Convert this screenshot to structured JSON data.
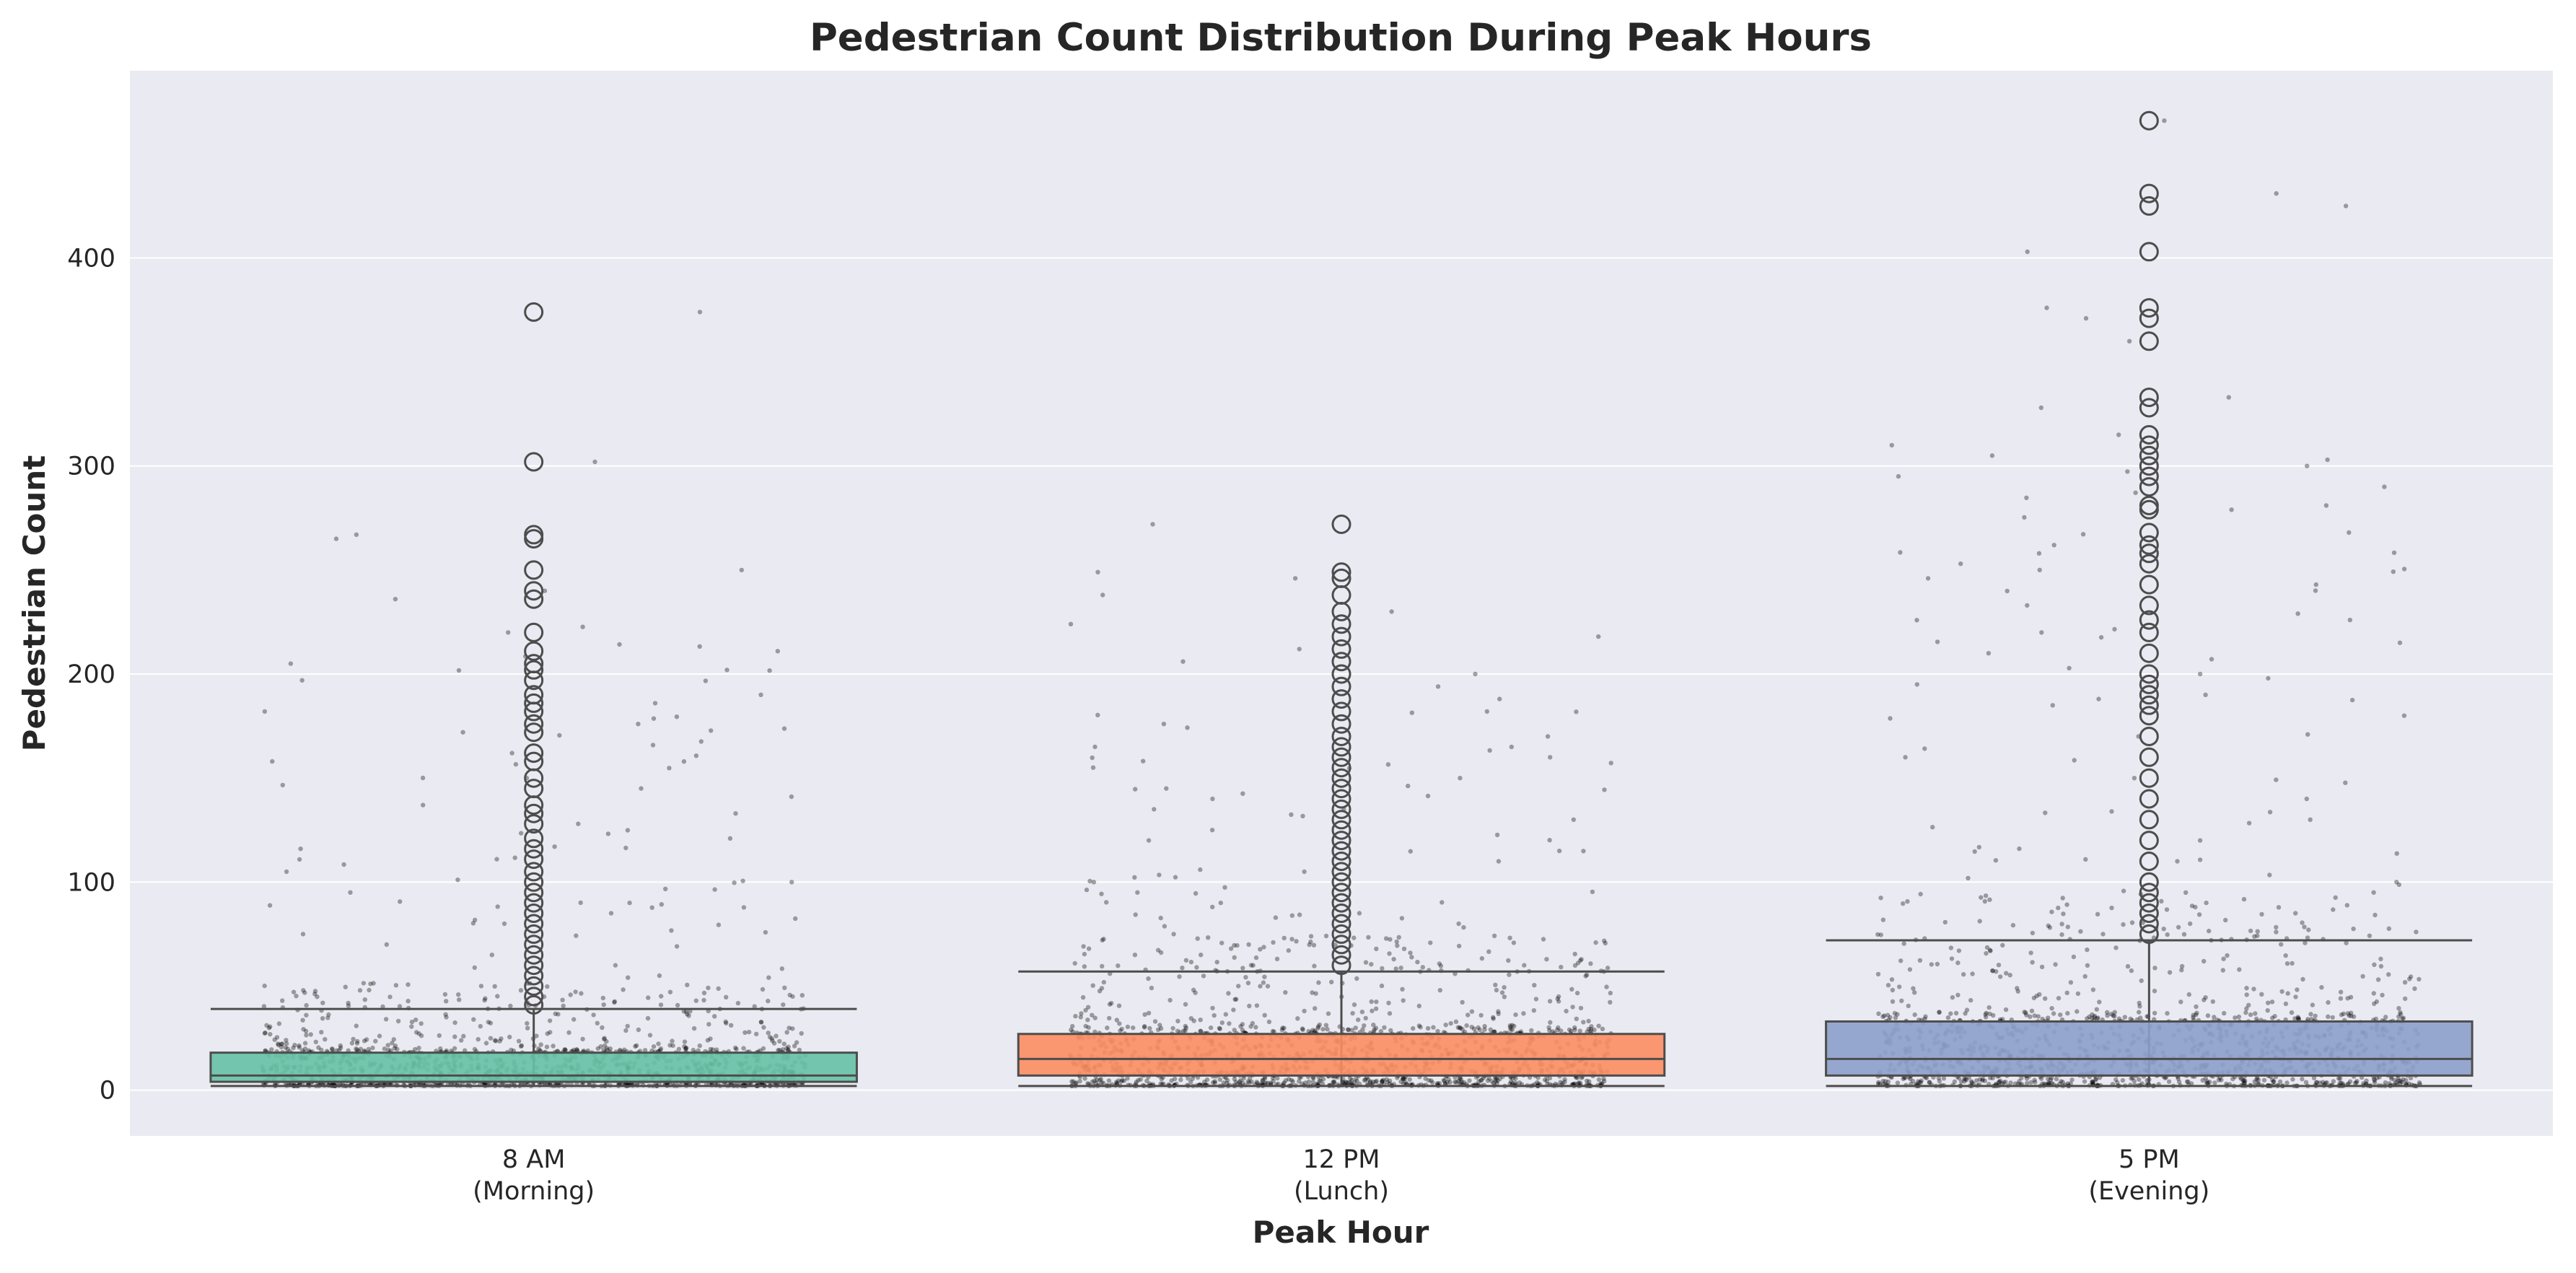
{
  "chart_data": {
    "type": "box",
    "title": "Pedestrian Count Distribution During Peak Hours",
    "xlabel": "Peak Hour",
    "ylabel": "Pedestrian Count",
    "ylim": [
      -22,
      490
    ],
    "yticks": [
      0,
      100,
      200,
      300,
      400
    ],
    "grid": true,
    "legend": "none",
    "categories": [
      {
        "line1": "8 AM",
        "line2": "(Morning)"
      },
      {
        "line1": "12 PM",
        "line2": "(Lunch)"
      },
      {
        "line1": "5 PM",
        "line2": "(Evening)"
      }
    ],
    "boxes": [
      {
        "category": "8 AM (Morning)",
        "color": "#66c2a5",
        "whisker_low": 2,
        "q1": 4,
        "median": 7,
        "q3": 18,
        "whisker_high": 39,
        "outliers": [
          374,
          302,
          267,
          265,
          250,
          240,
          236,
          220,
          211,
          205,
          202,
          197,
          190,
          186,
          182,
          176,
          172,
          162,
          158,
          150,
          145,
          137,
          133,
          128,
          121,
          116,
          111,
          105,
          100,
          95,
          90,
          85,
          80,
          75,
          70,
          65,
          60,
          55,
          50,
          45,
          41
        ]
      },
      {
        "category": "12 PM (Lunch)",
        "color": "#fc8d62",
        "whisker_low": 2,
        "q1": 7,
        "median": 15,
        "q3": 27,
        "whisker_high": 57,
        "outliers": [
          272,
          249,
          246,
          238,
          230,
          224,
          218,
          212,
          206,
          200,
          194,
          188,
          182,
          176,
          170,
          165,
          160,
          155,
          150,
          145,
          140,
          135,
          130,
          125,
          120,
          115,
          110,
          105,
          100,
          95,
          90,
          85,
          80,
          75,
          70,
          65,
          60
        ]
      },
      {
        "category": "5 PM (Evening)",
        "color": "#8da0cb",
        "whisker_low": 2,
        "q1": 7,
        "median": 15,
        "q3": 33,
        "whisker_high": 72,
        "outliers": [
          466,
          431,
          425,
          403,
          376,
          371,
          360,
          333,
          328,
          315,
          310,
          305,
          300,
          295,
          290,
          281,
          279,
          268,
          262,
          258,
          253,
          243,
          233,
          226,
          220,
          210,
          200,
          195,
          190,
          185,
          180,
          170,
          160,
          150,
          140,
          130,
          120,
          110,
          100,
          95,
          90,
          85,
          80,
          75
        ]
      }
    ]
  }
}
